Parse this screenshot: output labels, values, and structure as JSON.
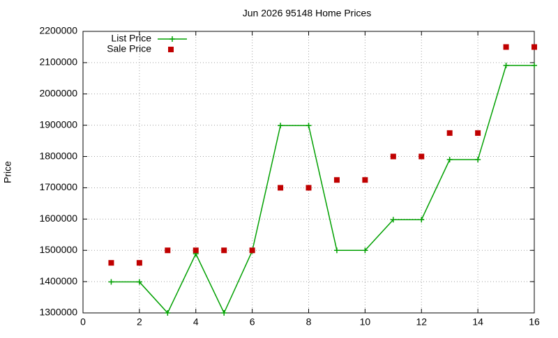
{
  "chart_data": {
    "type": "line",
    "title": "Jun 2026 95148 Home Prices",
    "ylabel": "Price",
    "x": [
      1,
      2,
      3,
      4,
      5,
      6,
      7,
      8,
      9,
      10,
      11,
      12,
      13,
      14,
      15,
      16
    ],
    "series": [
      {
        "name": "List Price",
        "color": "#00a000",
        "style": "linespoints",
        "values": [
          1399000,
          1399000,
          1300000,
          1489000,
          1300000,
          1498000,
          1899000,
          1899000,
          1500000,
          1500000,
          1598000,
          1598000,
          1790000,
          1790000,
          2091000,
          2091000
        ]
      },
      {
        "name": "Sale Price",
        "color": "#c00000",
        "style": "points",
        "values": [
          1460000,
          1460000,
          1500000,
          1500000,
          1500000,
          1500000,
          1700000,
          1700000,
          1725000,
          1725000,
          1800000,
          1800000,
          1875000,
          1875000,
          2150000,
          2150000
        ]
      }
    ],
    "xlim": [
      0,
      16
    ],
    "xticks": [
      0,
      2,
      4,
      6,
      8,
      10,
      12,
      14,
      16
    ],
    "ylim": [
      1300000,
      2200000
    ],
    "yticks": [
      1300000,
      1400000,
      1500000,
      1600000,
      1700000,
      1800000,
      1900000,
      2000000,
      2100000,
      2200000
    ],
    "grid": true,
    "legend": "top-left"
  }
}
